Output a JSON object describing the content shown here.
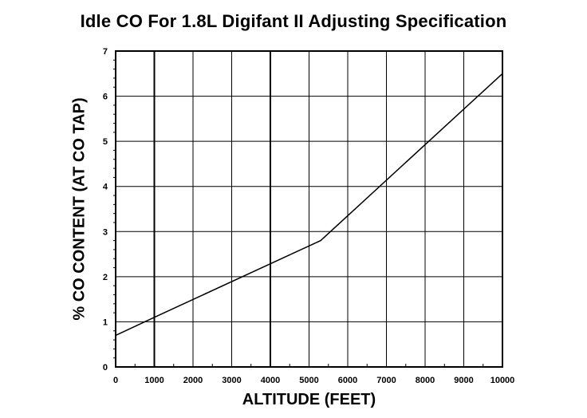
{
  "chart_data": {
    "type": "line",
    "title": "Idle CO For 1.8L Digifant II Adjusting Specification",
    "xlabel": "ALTITUDE (FEET)",
    "ylabel": "% CO CONTENT (AT CO TAP)",
    "xlim": [
      0,
      10000
    ],
    "ylim": [
      0,
      7
    ],
    "xticks": [
      0,
      1000,
      2000,
      3000,
      4000,
      5000,
      6000,
      7000,
      8000,
      9000,
      10000
    ],
    "yticks": [
      0,
      1,
      2,
      3,
      4,
      5,
      6,
      7
    ],
    "grid": true,
    "series": [
      {
        "name": "Idle CO",
        "x": [
          0,
          1000,
          5300,
          10000
        ],
        "y": [
          0.7,
          1.1,
          2.8,
          6.5
        ]
      }
    ]
  }
}
